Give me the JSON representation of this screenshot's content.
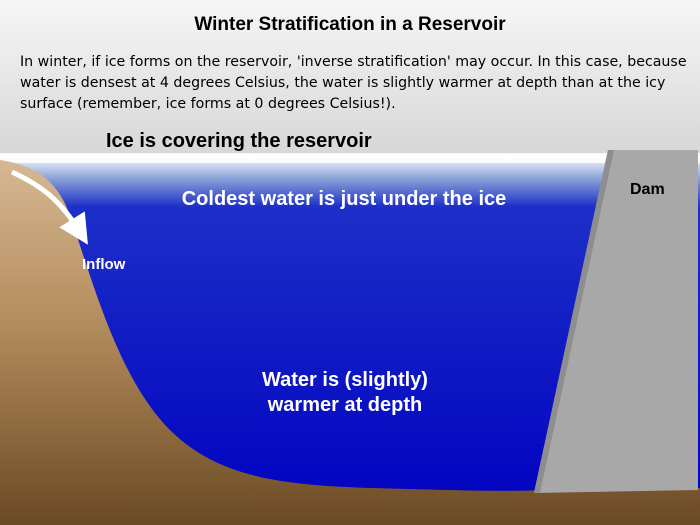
{
  "title": "Winter Stratification in a Reservoir",
  "description": "In winter, if ice forms on the reservoir, 'inverse stratification' may occur. In this case, because water is densest at 4 degrees Celsius, the water is slightly warmer at depth than at the icy surface (remember, ice forms at 0 degrees Celsius!).",
  "labels": {
    "ice": "Ice is covering the reservoir",
    "coldest": "Coldest water is just under the ice",
    "warmer_line1": "Water is (slightly)",
    "warmer_line2": "warmer at depth",
    "inflow": "Inflow",
    "dam": "Dam"
  },
  "colors": {
    "sky_top": "#f6f6f6",
    "sky_bottom": "#8c8c8c",
    "ice": "#ffffff",
    "water_surface": "#8fa8d8",
    "water_deep": "#0000c0",
    "ground_light": "#d6b893",
    "ground_dark": "#6a4a24",
    "dam": "#a8a8a8"
  }
}
